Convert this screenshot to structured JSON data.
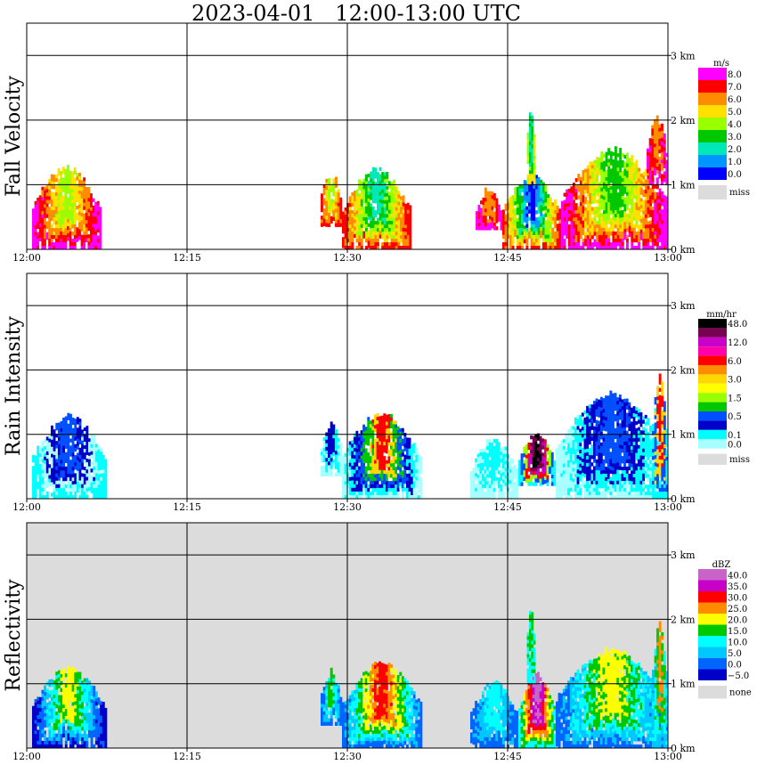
{
  "title": "2023-04-01   12:00-13:00 UTC",
  "chart_data": [
    {
      "type": "heatmap",
      "title": "Fall Velocity",
      "x_ticks": [
        "12:00",
        "12:15",
        "12:30",
        "12:45",
        "13:00"
      ],
      "y_ticks": [
        "0 km",
        "1 km",
        "2 km",
        "3 km"
      ],
      "ylim": [
        0,
        3.5
      ],
      "grid": true,
      "colorbar": {
        "unit": "m/s",
        "labels": [
          "8.0",
          "7.0",
          "6.0",
          "5.0",
          "4.0",
          "3.0",
          "2.0",
          "1.0",
          "0.0"
        ],
        "colors": [
          "#ff00ff",
          "#ff0000",
          "#ff8c00",
          "#ffe000",
          "#9aff00",
          "#00c800",
          "#00e8b8",
          "#0096ff",
          "#0000ff"
        ],
        "missing_label": "miss",
        "missing_color": "#dcdcdc"
      },
      "background": "#ffffff",
      "echoes": [
        {
          "t0": 0.5,
          "t1": 7,
          "h0": 0,
          "h1": 1.35,
          "levels": [
            0,
            1,
            2,
            3,
            4
          ]
        },
        {
          "t0": 27.5,
          "t1": 29.5,
          "h0": 0.35,
          "h1": 1.25,
          "levels": [
            1,
            2,
            3,
            4
          ]
        },
        {
          "t0": 29.5,
          "t1": 36,
          "h0": 0,
          "h1": 1.3,
          "levels": [
            1,
            2,
            3,
            4,
            5,
            6
          ]
        },
        {
          "t0": 42,
          "t1": 44.5,
          "h0": 0.3,
          "h1": 1,
          "levels": [
            0,
            1,
            2
          ]
        },
        {
          "t0": 44.5,
          "t1": 50,
          "h0": 0,
          "h1": 1.2,
          "levels": [
            1,
            2,
            3,
            4,
            5,
            6,
            7,
            8
          ]
        },
        {
          "t0": 46.8,
          "t1": 47.6,
          "h0": 1,
          "h1": 2.2,
          "levels": [
            3,
            4,
            5,
            6
          ]
        },
        {
          "t0": 50,
          "t1": 60,
          "h0": 0,
          "h1": 1.6,
          "levels": [
            0,
            1,
            2,
            3,
            4,
            5
          ]
        },
        {
          "t0": 58,
          "t1": 60,
          "h0": 1,
          "h1": 2.1,
          "levels": [
            0,
            1,
            2
          ]
        }
      ]
    },
    {
      "type": "heatmap",
      "title": "Rain Intensity",
      "x_ticks": [
        "12:00",
        "12:15",
        "12:30",
        "12:45",
        "13:00"
      ],
      "y_ticks": [
        "0 km",
        "1 km",
        "2 km",
        "3 km"
      ],
      "ylim": [
        0,
        3.5
      ],
      "grid": true,
      "colorbar": {
        "unit": "mm/hr",
        "labels": [
          "48.0",
          "",
          "12.0",
          "",
          "6.0",
          "",
          "3.0",
          "",
          "1.5",
          "",
          "0.5",
          "",
          "0.1",
          "0.0"
        ],
        "colors": [
          "#000000",
          "#780050",
          "#c800c8",
          "#ff00aa",
          "#ff0000",
          "#ff8c00",
          "#ffd700",
          "#ffff00",
          "#9aff00",
          "#00c800",
          "#0050ff",
          "#0000c8",
          "#00ffff",
          "#a8ffff"
        ],
        "missing_label": "miss",
        "missing_color": "#dcdcdc"
      },
      "background": "#ffffff",
      "echoes": [
        {
          "t0": 0.5,
          "t1": 7.5,
          "h0": 0,
          "h1": 1.35,
          "levels": [
            12,
            13,
            11,
            10
          ]
        },
        {
          "t0": 27.5,
          "t1": 29.5,
          "h0": 0.35,
          "h1": 1.25,
          "levels": [
            13,
            12,
            11
          ]
        },
        {
          "t0": 29.5,
          "t1": 37,
          "h0": 0,
          "h1": 1.4,
          "levels": [
            13,
            12,
            11,
            10,
            9,
            6,
            4
          ]
        },
        {
          "t0": 41.5,
          "t1": 46,
          "h0": 0,
          "h1": 1,
          "levels": [
            13,
            12
          ]
        },
        {
          "t0": 46,
          "t1": 49.5,
          "h0": 0.2,
          "h1": 1.1,
          "levels": [
            12,
            10,
            8,
            4,
            2,
            1,
            0
          ]
        },
        {
          "t0": 49.5,
          "t1": 60,
          "h0": 0,
          "h1": 1.7,
          "levels": [
            13,
            12,
            11,
            10
          ]
        },
        {
          "t0": 58.5,
          "t1": 60,
          "h0": 0,
          "h1": 2,
          "levels": [
            12,
            10,
            6,
            4
          ]
        }
      ]
    },
    {
      "type": "heatmap",
      "title": "Reflectivity",
      "x_ticks": [
        "12:00",
        "12:15",
        "12:30",
        "12:45",
        "13:00"
      ],
      "y_ticks": [
        "0 km",
        "1 km",
        "2 km",
        "3 km"
      ],
      "ylim": [
        0,
        3.5
      ],
      "grid": true,
      "colorbar": {
        "unit": "dBZ",
        "labels": [
          "40.0",
          "35.0",
          "30.0",
          "25.0",
          "20.0",
          "15.0",
          "10.0",
          "5.0",
          "0.0",
          "−5.0"
        ],
        "colors": [
          "#c864c8",
          "#c800c8",
          "#ff0000",
          "#ff8c00",
          "#ffff00",
          "#00c800",
          "#00ffff",
          "#00c8ff",
          "#0064ff",
          "#0000c8"
        ],
        "missing_label": "none",
        "missing_color": "#dcdcdc"
      },
      "background": "#dcdcdc",
      "echoes": [
        {
          "t0": 0.5,
          "t1": 7.5,
          "h0": 0,
          "h1": 1.35,
          "levels": [
            9,
            8,
            7,
            6,
            5,
            4
          ]
        },
        {
          "t0": 27.5,
          "t1": 29.5,
          "h0": 0.35,
          "h1": 1.25,
          "levels": [
            8,
            7,
            6,
            5
          ]
        },
        {
          "t0": 29.5,
          "t1": 37,
          "h0": 0,
          "h1": 1.4,
          "levels": [
            8,
            7,
            6,
            5,
            4,
            3,
            2
          ]
        },
        {
          "t0": 41.5,
          "t1": 46,
          "h0": 0,
          "h1": 1.1,
          "levels": [
            8,
            7,
            6
          ]
        },
        {
          "t0": 46,
          "t1": 49.5,
          "h0": 0,
          "h1": 1.2,
          "levels": [
            6,
            5,
            4,
            3,
            2,
            1,
            0
          ]
        },
        {
          "t0": 46.8,
          "t1": 47.6,
          "h0": 1,
          "h1": 2.2,
          "levels": [
            6,
            5
          ]
        },
        {
          "t0": 49.5,
          "t1": 60,
          "h0": 0,
          "h1": 1.6,
          "levels": [
            8,
            7,
            6,
            5,
            4
          ]
        },
        {
          "t0": 58.5,
          "t1": 60,
          "h0": 0,
          "h1": 2,
          "levels": [
            7,
            6,
            5,
            3
          ]
        }
      ]
    }
  ]
}
